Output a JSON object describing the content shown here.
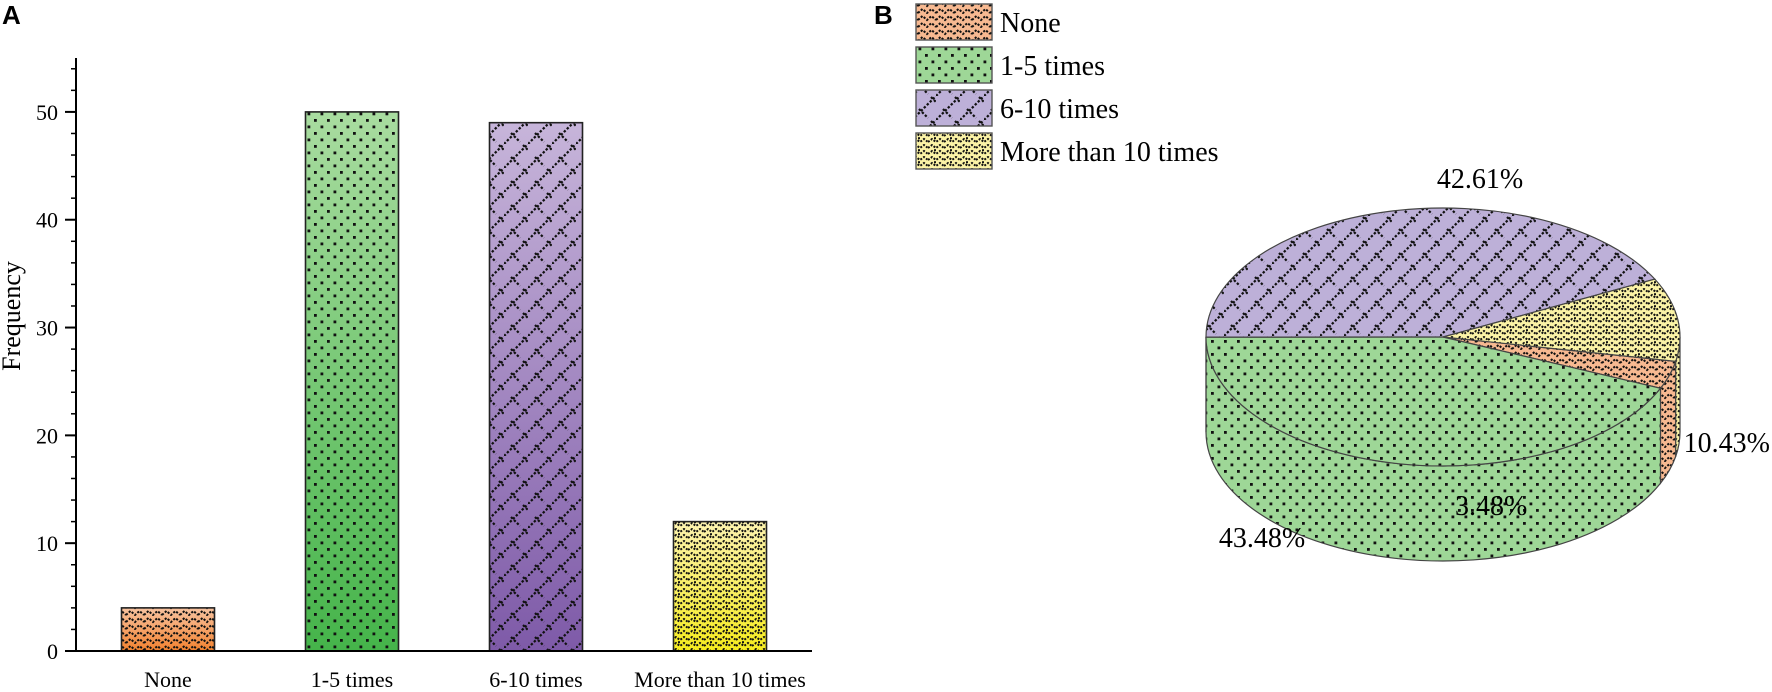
{
  "panels": {
    "a_letter": "A",
    "b_letter": "B"
  },
  "chart_data": [
    {
      "type": "bar",
      "categories": [
        "None",
        "1-5 times",
        "6-10 times",
        "More than 10 times"
      ],
      "values": [
        4,
        50,
        49,
        12
      ],
      "xlabel": "",
      "ylabel": "Frequency",
      "ylim": [
        0,
        55
      ],
      "yticks": [
        0,
        10,
        20,
        30,
        40,
        50
      ],
      "yticks_labels": [
        "0",
        "10",
        "20",
        "30",
        "40",
        "50"
      ],
      "grid": false,
      "colors_top": [
        "#f7c3a0",
        "#a9dca0",
        "#c7b5da",
        "#fdf3b0"
      ],
      "colors_bottom": [
        "#f3822f",
        "#45b44a",
        "#7e5aa8",
        "#f6ec1e"
      ]
    },
    {
      "type": "pie",
      "labels": [
        "None",
        "1-5 times",
        "6-10 times",
        "More than 10 times"
      ],
      "values": [
        3.48,
        43.48,
        42.61,
        10.43
      ],
      "value_labels": [
        "3.48%",
        "43.48%",
        "42.61%",
        "10.43%"
      ],
      "colors": [
        "#f7b991",
        "#9ed797",
        "#bdb0d8",
        "#fbf3a6"
      ],
      "legend": "top-left",
      "three_d": true
    }
  ]
}
